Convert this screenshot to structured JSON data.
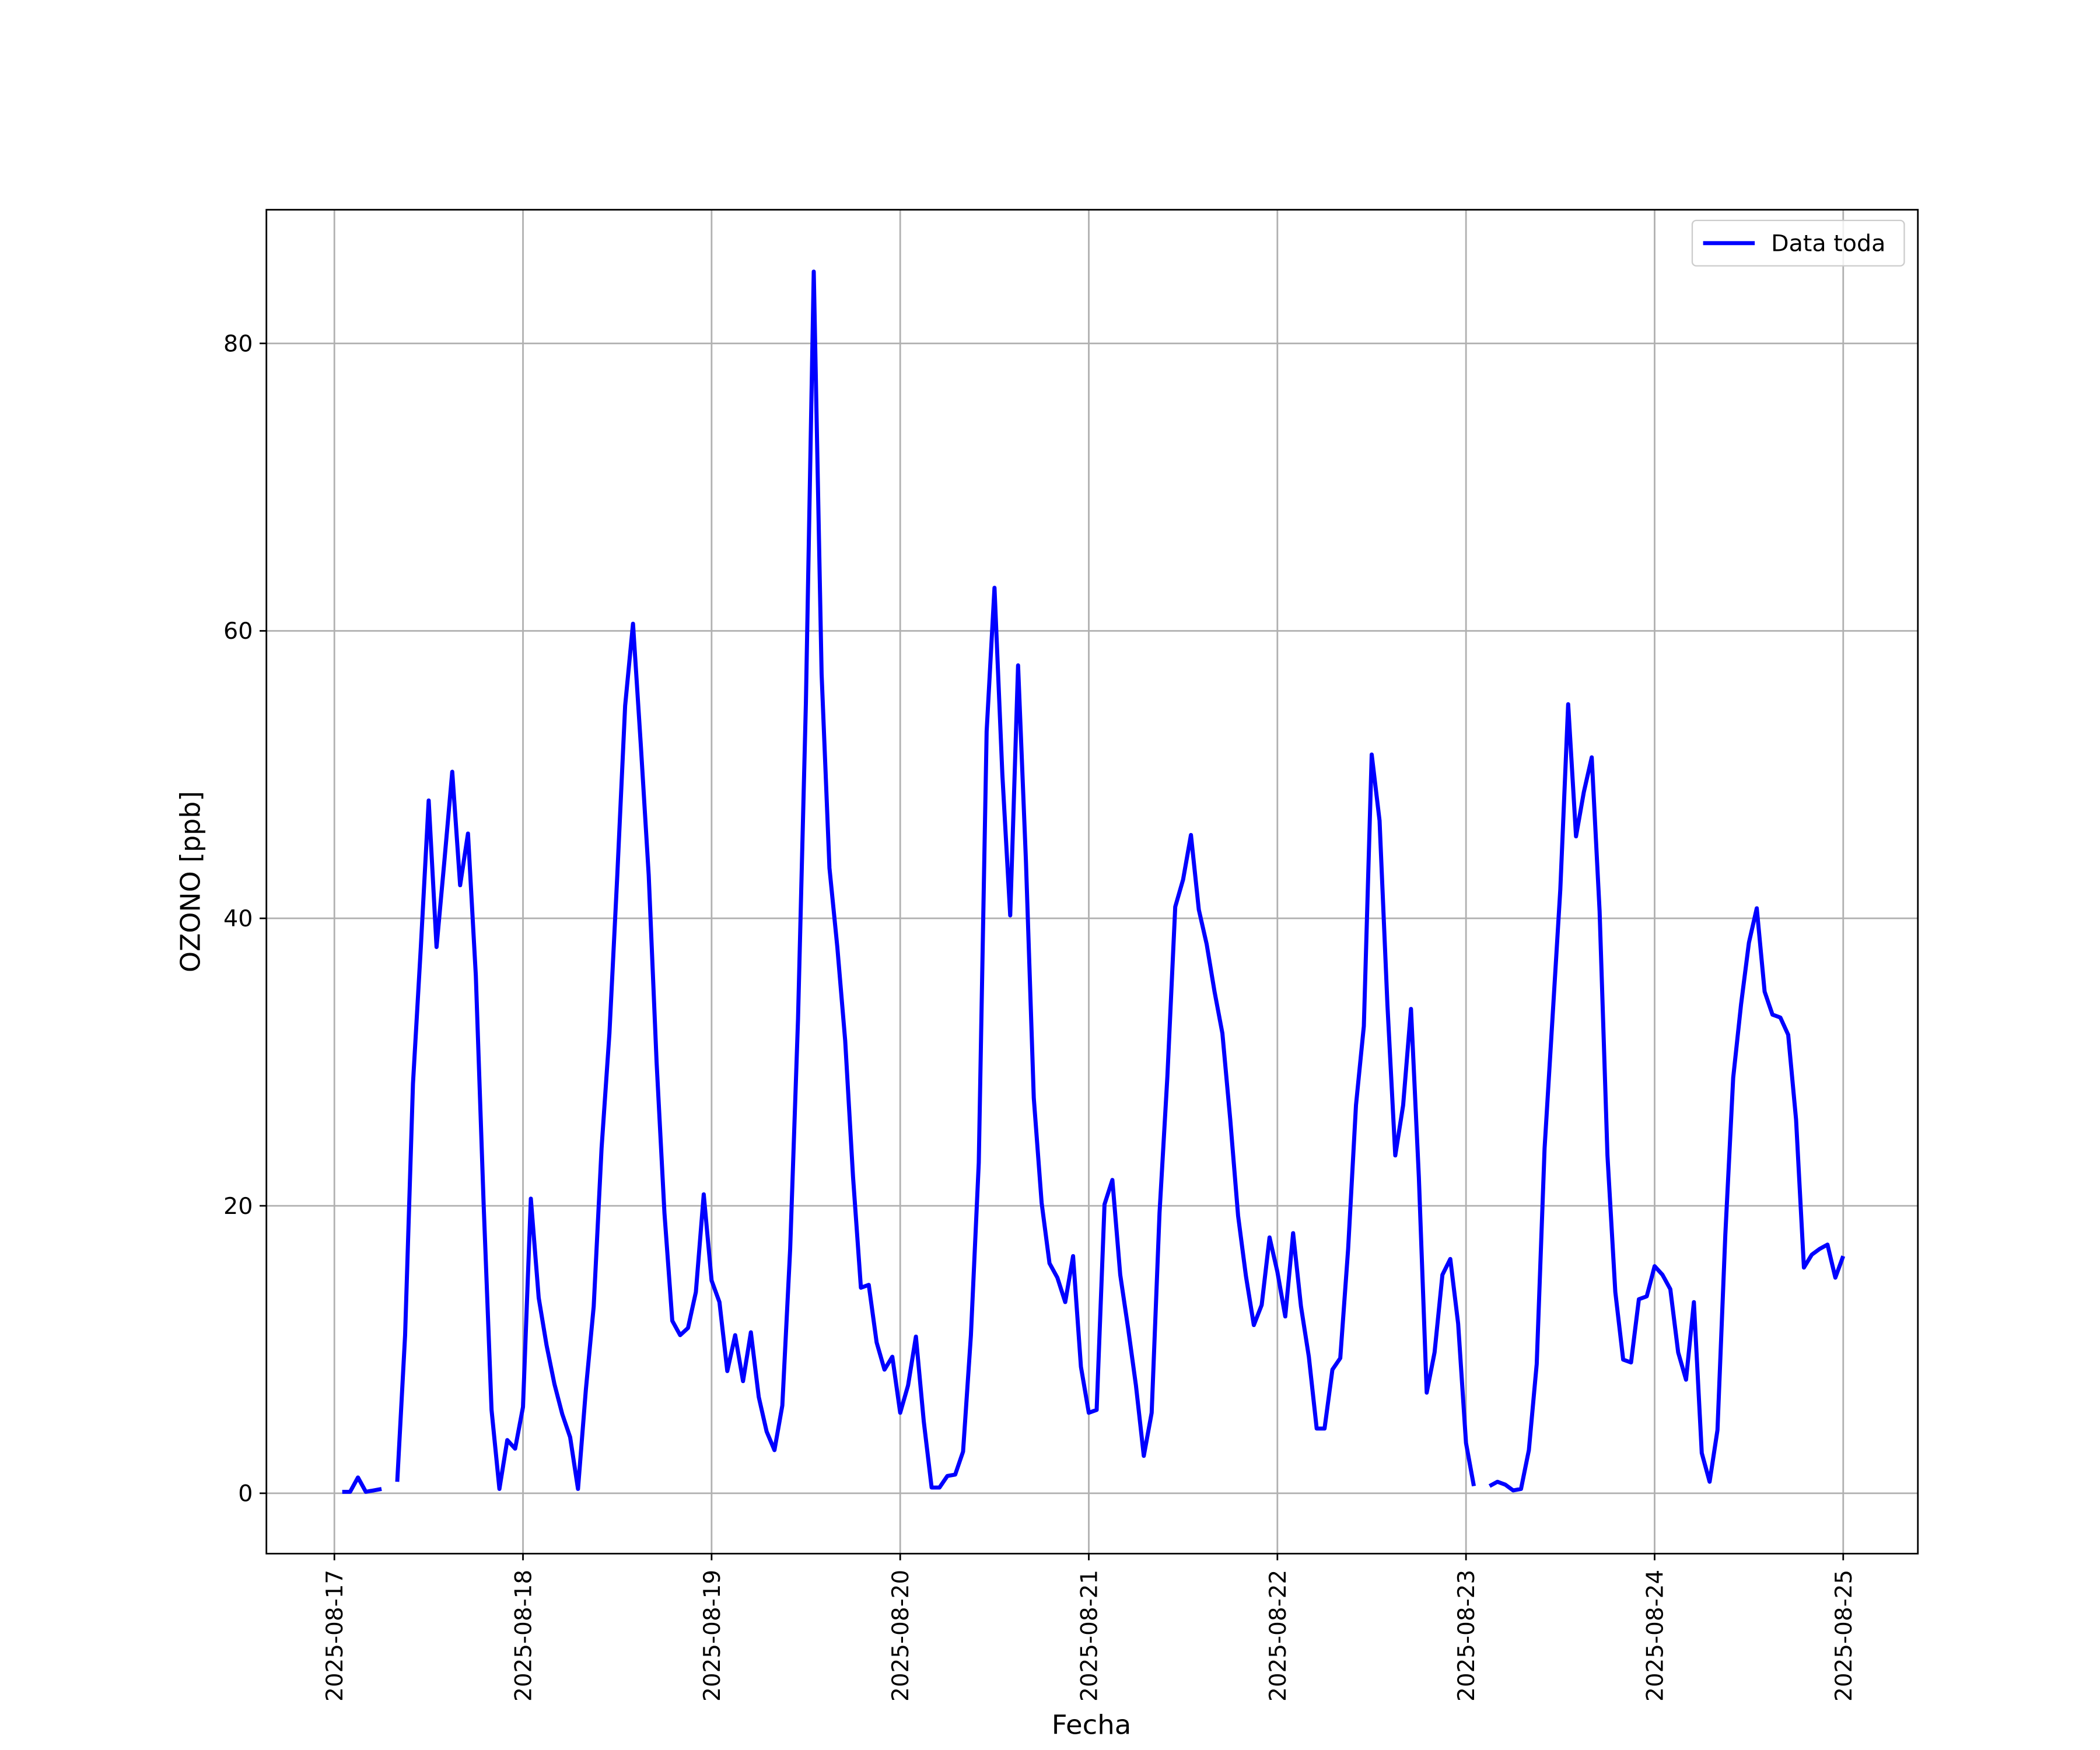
{
  "chart_data": {
    "type": "line",
    "xlabel": "Fecha",
    "ylabel": "OZONO [ppb]",
    "xlim": [
      "2025-08-16 15:21",
      "2025-08-25 09:30"
    ],
    "xticks": [
      "2025-08-17",
      "2025-08-18",
      "2025-08-19",
      "2025-08-20",
      "2025-08-21",
      "2025-08-22",
      "2025-08-23",
      "2025-08-24",
      "2025-08-25"
    ],
    "ylim": [
      -4.2,
      89.3
    ],
    "yticks": [
      0,
      20,
      40,
      60,
      80
    ],
    "grid": true,
    "legend": "upper right",
    "x": [
      "2025-08-17 01:00",
      "2025-08-17 02:00",
      "2025-08-17 03:00",
      "2025-08-17 04:00",
      "2025-08-17 05:00",
      "2025-08-17 06:00",
      "2025-08-17 07:00",
      "2025-08-17 08:00",
      "2025-08-17 09:00",
      "2025-08-17 10:00",
      "2025-08-17 11:00",
      "2025-08-17 12:00",
      "2025-08-17 13:00",
      "2025-08-17 14:00",
      "2025-08-17 15:00",
      "2025-08-17 16:00",
      "2025-08-17 17:00",
      "2025-08-17 18:00",
      "2025-08-17 19:00",
      "2025-08-17 20:00",
      "2025-08-17 21:00",
      "2025-08-17 22:00",
      "2025-08-17 23:00",
      "2025-08-18 00:00",
      "2025-08-18 01:00",
      "2025-08-18 02:00",
      "2025-08-18 03:00",
      "2025-08-18 04:00",
      "2025-08-18 05:00",
      "2025-08-18 06:00",
      "2025-08-18 07:00",
      "2025-08-18 08:00",
      "2025-08-18 09:00",
      "2025-08-18 10:00",
      "2025-08-18 11:00",
      "2025-08-18 12:00",
      "2025-08-18 13:00",
      "2025-08-18 14:00",
      "2025-08-18 15:00",
      "2025-08-18 16:00",
      "2025-08-18 17:00",
      "2025-08-18 18:00",
      "2025-08-18 19:00",
      "2025-08-18 20:00",
      "2025-08-18 21:00",
      "2025-08-18 22:00",
      "2025-08-18 23:00",
      "2025-08-19 00:00",
      "2025-08-19 01:00",
      "2025-08-19 02:00",
      "2025-08-19 03:00",
      "2025-08-19 04:00",
      "2025-08-19 05:00",
      "2025-08-19 06:00",
      "2025-08-19 07:00",
      "2025-08-19 08:00",
      "2025-08-19 09:00",
      "2025-08-19 10:00",
      "2025-08-19 11:00",
      "2025-08-19 12:00",
      "2025-08-19 13:00",
      "2025-08-19 14:00",
      "2025-08-19 15:00",
      "2025-08-19 16:00",
      "2025-08-19 17:00",
      "2025-08-19 18:00",
      "2025-08-19 19:00",
      "2025-08-19 20:00",
      "2025-08-19 21:00",
      "2025-08-19 22:00",
      "2025-08-19 23:00",
      "2025-08-20 00:00",
      "2025-08-20 01:00",
      "2025-08-20 02:00",
      "2025-08-20 03:00",
      "2025-08-20 04:00",
      "2025-08-20 05:00",
      "2025-08-20 06:00",
      "2025-08-20 07:00",
      "2025-08-20 08:00",
      "2025-08-20 09:00",
      "2025-08-20 10:00",
      "2025-08-20 11:00",
      "2025-08-20 12:00",
      "2025-08-20 13:00",
      "2025-08-20 14:00",
      "2025-08-20 15:00",
      "2025-08-20 16:00",
      "2025-08-20 17:00",
      "2025-08-20 18:00",
      "2025-08-20 19:00",
      "2025-08-20 20:00",
      "2025-08-20 21:00",
      "2025-08-20 22:00",
      "2025-08-20 23:00",
      "2025-08-21 00:00",
      "2025-08-21 01:00",
      "2025-08-21 02:00",
      "2025-08-21 03:00",
      "2025-08-21 04:00",
      "2025-08-21 05:00",
      "2025-08-21 06:00",
      "2025-08-21 07:00",
      "2025-08-21 08:00",
      "2025-08-21 09:00",
      "2025-08-21 10:00",
      "2025-08-21 11:00",
      "2025-08-21 12:00",
      "2025-08-21 13:00",
      "2025-08-21 14:00",
      "2025-08-21 15:00",
      "2025-08-21 16:00",
      "2025-08-21 17:00",
      "2025-08-21 18:00",
      "2025-08-21 19:00",
      "2025-08-21 20:00",
      "2025-08-21 21:00",
      "2025-08-21 22:00",
      "2025-08-21 23:00",
      "2025-08-22 00:00",
      "2025-08-22 01:00",
      "2025-08-22 02:00",
      "2025-08-22 03:00",
      "2025-08-22 04:00",
      "2025-08-22 05:00",
      "2025-08-22 06:00",
      "2025-08-22 07:00",
      "2025-08-22 08:00",
      "2025-08-22 09:00",
      "2025-08-22 10:00",
      "2025-08-22 11:00",
      "2025-08-22 12:00",
      "2025-08-22 13:00",
      "2025-08-22 14:00",
      "2025-08-22 15:00",
      "2025-08-22 16:00",
      "2025-08-22 17:00",
      "2025-08-22 18:00",
      "2025-08-22 19:00",
      "2025-08-22 20:00",
      "2025-08-22 21:00",
      "2025-08-22 22:00",
      "2025-08-22 23:00",
      "2025-08-23 00:00",
      "2025-08-23 01:00",
      "2025-08-23 02:00",
      "2025-08-23 03:00",
      "2025-08-23 04:00",
      "2025-08-23 05:00",
      "2025-08-23 06:00",
      "2025-08-23 07:00",
      "2025-08-23 08:00",
      "2025-08-23 09:00",
      "2025-08-23 10:00",
      "2025-08-23 11:00",
      "2025-08-23 12:00",
      "2025-08-23 13:00",
      "2025-08-23 14:00",
      "2025-08-23 15:00",
      "2025-08-23 16:00",
      "2025-08-23 17:00",
      "2025-08-23 18:00",
      "2025-08-23 19:00",
      "2025-08-23 20:00",
      "2025-08-23 21:00",
      "2025-08-23 22:00",
      "2025-08-23 23:00",
      "2025-08-24 00:00",
      "2025-08-24 01:00",
      "2025-08-24 02:00",
      "2025-08-24 03:00",
      "2025-08-24 04:00",
      "2025-08-24 05:00",
      "2025-08-24 06:00",
      "2025-08-24 07:00",
      "2025-08-24 08:00",
      "2025-08-24 09:00",
      "2025-08-24 10:00",
      "2025-08-24 11:00",
      "2025-08-24 12:00",
      "2025-08-24 13:00",
      "2025-08-24 14:00",
      "2025-08-24 15:00",
      "2025-08-24 16:00",
      "2025-08-24 17:00",
      "2025-08-24 18:00",
      "2025-08-24 19:00",
      "2025-08-24 20:00",
      "2025-08-24 21:00",
      "2025-08-24 22:00",
      "2025-08-24 23:00",
      "2025-08-25 00:00"
    ],
    "series": [
      {
        "name": "Data toda",
        "color": "#0000ff",
        "values": [
          0.1,
          0.1,
          1.1,
          0.1,
          0.2,
          0.3,
          null,
          0.8,
          11,
          28.5,
          38,
          48.2,
          38,
          44,
          50.2,
          42.3,
          45.9,
          36,
          20,
          5.8,
          0.3,
          3.7,
          3.1,
          6.0,
          20.5,
          13.6,
          10.3,
          7.6,
          5.5,
          3.9,
          0.3,
          7.2,
          13,
          24,
          32,
          43,
          54.8,
          60.5,
          52,
          43,
          30,
          19.5,
          12,
          11,
          11.5,
          14,
          20.8,
          14.8,
          13.3,
          8.5,
          11,
          7.8,
          11.2,
          6.7,
          4.3,
          3,
          6.1,
          17,
          33,
          55,
          85,
          57,
          43.5,
          38,
          31.5,
          22,
          14.3,
          14.5,
          10.5,
          8.6,
          9.5,
          5.6,
          7.5,
          10.9,
          5,
          0.4,
          0.4,
          1.2,
          1.3,
          2.9,
          11,
          23,
          53,
          63,
          50,
          40.2,
          57.6,
          44,
          27.5,
          20.2,
          16,
          15,
          13.3,
          16.5,
          8.8,
          5.6,
          5.8,
          20.1,
          21.8,
          15.2,
          11.5,
          7.5,
          2.6,
          5.6,
          19.5,
          29,
          40.8,
          42.7,
          45.8,
          40.6,
          38.2,
          34.9,
          32,
          26,
          19.3,
          15.1,
          11.7,
          13.1,
          17.8,
          15.4,
          12.3,
          18.1,
          13,
          9.5,
          4.5,
          4.5,
          8.6,
          9.4,
          17,
          27,
          32.5,
          51.4,
          46.8,
          34,
          23.5,
          27,
          33.7,
          22,
          7,
          9.8,
          15.2,
          16.3,
          11.8,
          3.5,
          0.5,
          null,
          0.5,
          0.8,
          0.6,
          0.2,
          0.3,
          3,
          9,
          24,
          33,
          42,
          54.9,
          45.7,
          48.8,
          51.2,
          40.5,
          23.5,
          14,
          9.3,
          9.1,
          13.5,
          13.7,
          15.8,
          15.2,
          14.2,
          9.8,
          7.9,
          13.3,
          2.8,
          0.8,
          4.4,
          18,
          28.9,
          34,
          38.3,
          40.7,
          34.9,
          33.3,
          33.1,
          31.9,
          26,
          15.7,
          16.6,
          17,
          17.3,
          15,
          16.5
        ]
      }
    ]
  }
}
